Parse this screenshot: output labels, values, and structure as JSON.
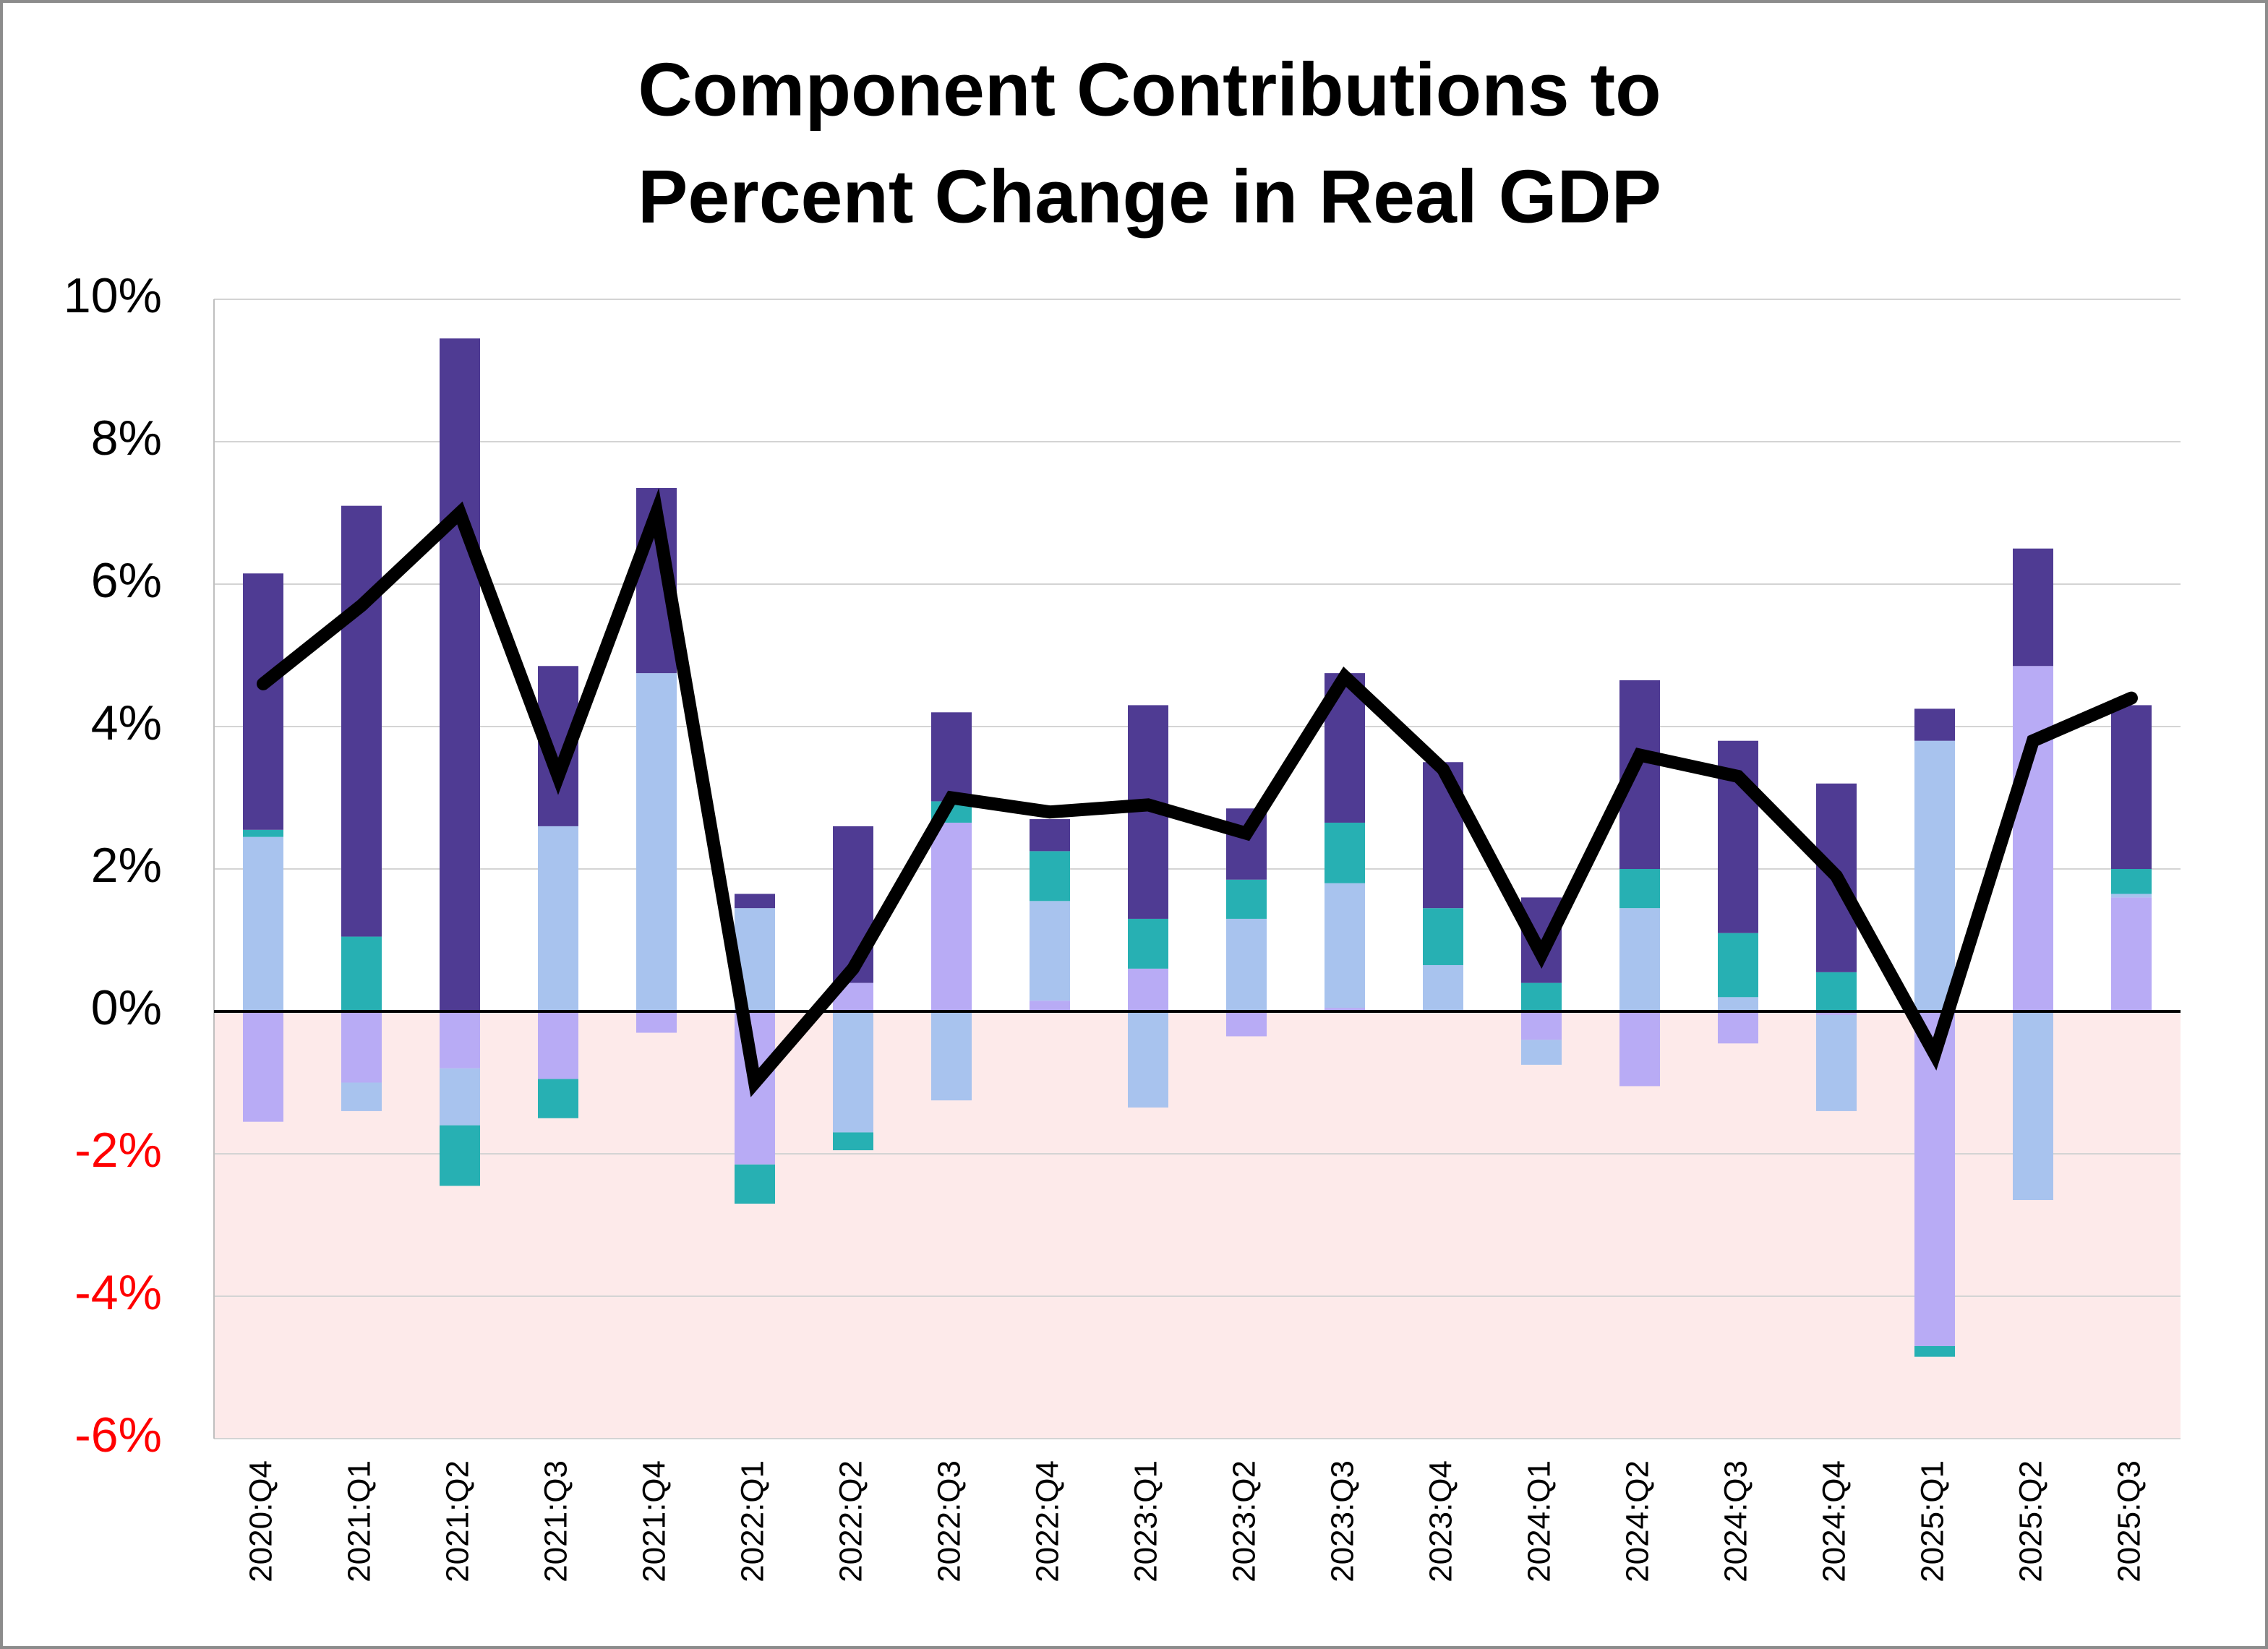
{
  "chart_data": {
    "type": "bar",
    "stacked": true,
    "title": [
      "Component Contributions to",
      "Percent Change in Real GDP"
    ],
    "categories": [
      "2020:Q4",
      "2021:Q1",
      "2021:Q2",
      "2021:Q3",
      "2021:Q4",
      "2022:Q1",
      "2022:Q2",
      "2022:Q3",
      "2022:Q4",
      "2023:Q1",
      "2023:Q2",
      "2023:Q3",
      "2023:Q4",
      "2024:Q1",
      "2024:Q2",
      "2024:Q3",
      "2024:Q4",
      "2025:Q1",
      "2025:Q2",
      "2025:Q3"
    ],
    "series": [
      {
        "color": "#b8abf5",
        "values": [
          -1.55,
          -1.0,
          -0.8,
          -0.95,
          -0.3,
          -2.15,
          0.4,
          2.65,
          0.15,
          0.6,
          -0.35,
          0.05,
          0,
          -0.4,
          -1.05,
          -0.45,
          -0.05,
          -4.7,
          4.85,
          1.6
        ]
      },
      {
        "color": "#a8c3ee",
        "values": [
          2.45,
          -0.4,
          -0.8,
          2.6,
          4.75,
          1.45,
          -1.7,
          -1.25,
          1.4,
          -1.35,
          1.3,
          1.75,
          0.65,
          -0.35,
          1.45,
          0.2,
          -1.35,
          3.8,
          -2.65,
          0.05
        ]
      },
      {
        "color": "#27b0b3",
        "values": [
          0.1,
          1.05,
          -0.85,
          -0.55,
          0,
          -0.55,
          -0.25,
          0.3,
          0.7,
          0.7,
          0.55,
          0.85,
          0.8,
          0.4,
          0.55,
          0.9,
          0.55,
          -0.15,
          0,
          0.35
        ]
      },
      {
        "color": "#4f3b93",
        "values": [
          3.6,
          6.05,
          9.45,
          2.25,
          2.6,
          0.2,
          2.2,
          1.25,
          0.45,
          3.0,
          1.0,
          2.1,
          2.05,
          1.2,
          2.65,
          2.7,
          2.65,
          0.45,
          1.65,
          2.3
        ]
      },
      {
        "type": "line",
        "color": "#000000",
        "values": [
          4.6,
          5.7,
          7.0,
          3.3,
          7.0,
          -1.0,
          0.6,
          3.0,
          2.8,
          2.9,
          2.5,
          4.7,
          3.4,
          0.8,
          3.6,
          3.3,
          1.9,
          -0.6,
          3.8,
          4.4
        ]
      }
    ],
    "ylim": [
      -6,
      10
    ],
    "yticks": [
      {
        "value": -6,
        "label": "-6%"
      },
      {
        "value": -4,
        "label": "-4%"
      },
      {
        "value": -2,
        "label": "-2%"
      },
      {
        "value": 0,
        "label": "0%"
      },
      {
        "value": 2,
        "label": "2%"
      },
      {
        "value": 4,
        "label": "4%"
      },
      {
        "value": 6,
        "label": "6%"
      },
      {
        "value": 8,
        "label": "8%"
      },
      {
        "value": 10,
        "label": "10%"
      }
    ],
    "grid": true,
    "negative_shade": "#fdeaea",
    "negative_tick_color": "#ff0000"
  }
}
